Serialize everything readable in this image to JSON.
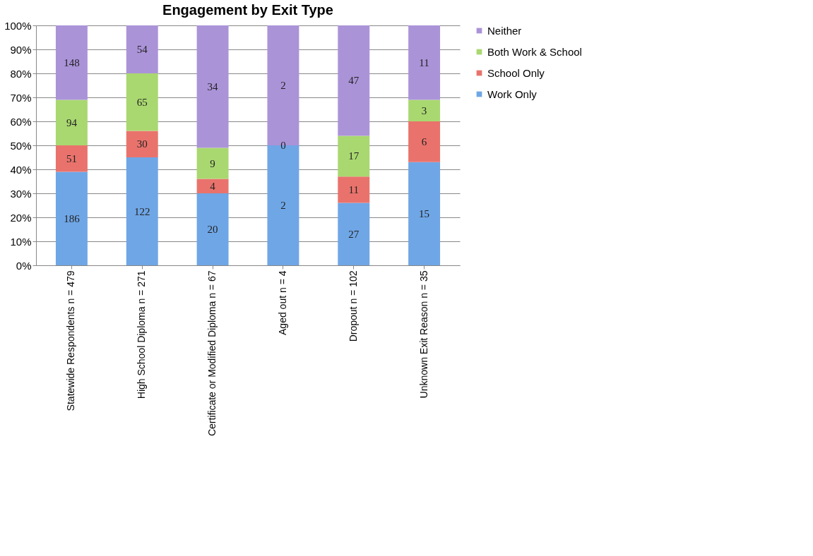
{
  "chart_data": {
    "type": "bar",
    "title": "Engagement by Exit Type",
    "stacked": true,
    "categories": [
      "Statewide Respondents n = 479",
      "High School  Diploma n = 271",
      "Certificate or Modified Diploma n = 67",
      "Aged out n = 4",
      "Dropout n = 102",
      "Unknown Exit Reason n = 35"
    ],
    "series": [
      {
        "name": "Work Only",
        "color": "#6fa6e6",
        "values": [
          39,
          45,
          30,
          50,
          26,
          43
        ]
      },
      {
        "name": "School Only",
        "color": "#e9736c",
        "values": [
          11,
          11,
          6,
          0,
          11,
          17
        ]
      },
      {
        "name": "Both Work & School",
        "color": "#a9d870",
        "values": [
          19,
          24,
          13,
          null,
          17,
          9
        ]
      },
      {
        "name": "Neither",
        "color": "#ab93d8",
        "values": [
          31,
          20,
          51,
          50,
          46,
          31
        ]
      }
    ],
    "annotations": [
      "186",
      "51",
      "94",
      "148",
      "122",
      "30",
      "65",
      "54",
      "20",
      "4",
      "9",
      "34",
      "2",
      "0",
      "2",
      "27",
      "11",
      "17",
      "47",
      "15",
      "6",
      "3",
      "11"
    ],
    "ylim": [
      0,
      100
    ],
    "yticks": [
      {
        "value": 0,
        "label": "0%"
      },
      {
        "value": 10,
        "label": "10%"
      },
      {
        "value": 20,
        "label": "20%"
      },
      {
        "value": 30,
        "label": "30%"
      },
      {
        "value": 40,
        "label": "40%"
      },
      {
        "value": 50,
        "label": "50%"
      },
      {
        "value": 60,
        "label": "60%"
      },
      {
        "value": 70,
        "label": "70%"
      },
      {
        "value": 80,
        "label": "80%"
      },
      {
        "value": 90,
        "label": "90%"
      },
      {
        "value": 100,
        "label": "100%"
      }
    ],
    "grid": "y",
    "legend": "right"
  }
}
